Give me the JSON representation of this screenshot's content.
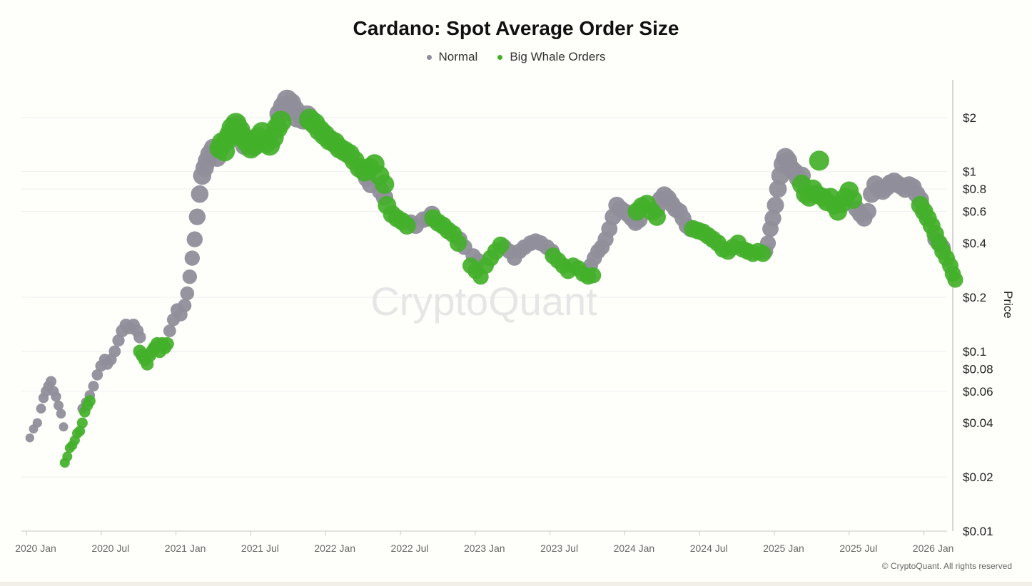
{
  "colors": {
    "normal": "#8f8e9a",
    "whale": "#43b02a",
    "grid": "#efefef",
    "axis": "#c8c8c8"
  },
  "chart_data": {
    "type": "scatter",
    "title": "Cardano: Spot Average Order Size",
    "ylabel": "Price",
    "xlabel": "",
    "y_scale": "log",
    "ylim": [
      0.01,
      3.3
    ],
    "y_ticks": [
      {
        "value": 2,
        "label": "$2"
      },
      {
        "value": 1,
        "label": "$1"
      },
      {
        "value": 0.8,
        "label": "$0.8"
      },
      {
        "value": 0.6,
        "label": "$0.6"
      },
      {
        "value": 0.4,
        "label": "$0.4"
      },
      {
        "value": 0.2,
        "label": "$0.2"
      },
      {
        "value": 0.1,
        "label": "$0.1"
      },
      {
        "value": 0.08,
        "label": "$0.08"
      },
      {
        "value": 0.06,
        "label": "$0.06"
      },
      {
        "value": 0.04,
        "label": "$0.04"
      },
      {
        "value": 0.02,
        "label": "$0.02"
      },
      {
        "value": 0.01,
        "label": "$0.01"
      }
    ],
    "x_ticks": [
      "2020 Jan",
      "2020 Jul",
      "2021 Jan",
      "2021 Jul",
      "2022 Jan",
      "2022 Jul",
      "2023 Jan",
      "2023 Jul",
      "2024 Jan",
      "2024 Jul",
      "2025 Jan",
      "2025 Jul",
      "2026 Jan"
    ],
    "xlim_months": [
      0,
      74.5
    ],
    "legend": [
      "Normal",
      "Big Whale Orders"
    ],
    "series": [
      {
        "name": "Normal",
        "points": [
          [
            0.1,
            0.033
          ],
          [
            0.4,
            0.037
          ],
          [
            0.7,
            0.04
          ],
          [
            1.0,
            0.048
          ],
          [
            1.2,
            0.055
          ],
          [
            1.4,
            0.06
          ],
          [
            1.6,
            0.064
          ],
          [
            1.8,
            0.068
          ],
          [
            2.0,
            0.06
          ],
          [
            2.2,
            0.056
          ],
          [
            2.4,
            0.05
          ],
          [
            2.6,
            0.045
          ],
          [
            2.8,
            0.038
          ],
          [
            4.3,
            0.048
          ],
          [
            4.6,
            0.052
          ],
          [
            4.9,
            0.057
          ],
          [
            5.2,
            0.064
          ],
          [
            5.5,
            0.074
          ],
          [
            5.8,
            0.083
          ],
          [
            6.1,
            0.09
          ],
          [
            6.3,
            0.085
          ],
          [
            6.6,
            0.09
          ],
          [
            6.9,
            0.1
          ],
          [
            7.2,
            0.115
          ],
          [
            7.5,
            0.13
          ],
          [
            7.8,
            0.14
          ],
          [
            8.1,
            0.135
          ],
          [
            8.4,
            0.14
          ],
          [
            8.7,
            0.13
          ],
          [
            8.9,
            0.12
          ],
          [
            11.3,
            0.13
          ],
          [
            11.6,
            0.15
          ],
          [
            11.9,
            0.17
          ],
          [
            12.2,
            0.16
          ],
          [
            12.5,
            0.18
          ],
          [
            12.7,
            0.21
          ],
          [
            12.9,
            0.26
          ],
          [
            13.1,
            0.33
          ],
          [
            13.3,
            0.42
          ],
          [
            13.5,
            0.56
          ],
          [
            13.7,
            0.75
          ],
          [
            13.9,
            0.95
          ],
          [
            14.1,
            1.05
          ],
          [
            14.3,
            1.15
          ],
          [
            14.5,
            1.25
          ],
          [
            14.8,
            1.35
          ],
          [
            15.1,
            1.2
          ],
          [
            16.4,
            1.7
          ],
          [
            16.7,
            1.8
          ],
          [
            17.0,
            1.6
          ],
          [
            17.3,
            1.4
          ],
          [
            20.1,
            2.1
          ],
          [
            20.4,
            2.3
          ],
          [
            20.7,
            2.5
          ],
          [
            21.0,
            2.4
          ],
          [
            21.3,
            2.2
          ],
          [
            21.5,
            2.0
          ],
          [
            22.0,
            1.95
          ],
          [
            22.3,
            2.05
          ],
          [
            27.1,
            0.92
          ],
          [
            27.4,
            0.85
          ],
          [
            28.2,
            0.78
          ],
          [
            28.5,
            0.72
          ],
          [
            30.6,
            0.52
          ],
          [
            31.0,
            0.5
          ],
          [
            31.6,
            0.54
          ],
          [
            32.0,
            0.55
          ],
          [
            32.3,
            0.58
          ],
          [
            34.5,
            0.42
          ],
          [
            34.9,
            0.38
          ],
          [
            35.6,
            0.34
          ],
          [
            36.0,
            0.32
          ],
          [
            38.1,
            0.38
          ],
          [
            38.5,
            0.36
          ],
          [
            38.9,
            0.33
          ],
          [
            39.3,
            0.36
          ],
          [
            39.7,
            0.38
          ],
          [
            40.2,
            0.4
          ],
          [
            40.6,
            0.41
          ],
          [
            41.0,
            0.4
          ],
          [
            41.5,
            0.38
          ],
          [
            41.9,
            0.36
          ],
          [
            44.7,
            0.28
          ],
          [
            45.0,
            0.3
          ],
          [
            45.3,
            0.33
          ],
          [
            45.6,
            0.36
          ],
          [
            45.9,
            0.38
          ],
          [
            46.2,
            0.42
          ],
          [
            46.5,
            0.48
          ],
          [
            46.8,
            0.56
          ],
          [
            47.1,
            0.65
          ],
          [
            47.4,
            0.62
          ],
          [
            47.7,
            0.6
          ],
          [
            48.0,
            0.58
          ],
          [
            48.3,
            0.55
          ],
          [
            48.6,
            0.52
          ],
          [
            48.9,
            0.54
          ],
          [
            50.3,
            0.62
          ],
          [
            50.6,
            0.7
          ],
          [
            50.9,
            0.74
          ],
          [
            51.2,
            0.71
          ],
          [
            51.5,
            0.66
          ],
          [
            51.8,
            0.62
          ],
          [
            52.1,
            0.6
          ],
          [
            52.4,
            0.55
          ],
          [
            52.7,
            0.5
          ],
          [
            53.0,
            0.48
          ],
          [
            59.0,
            0.36
          ],
          [
            59.2,
            0.4
          ],
          [
            59.4,
            0.48
          ],
          [
            59.6,
            0.55
          ],
          [
            59.8,
            0.65
          ],
          [
            60.0,
            0.8
          ],
          [
            60.2,
            0.95
          ],
          [
            60.4,
            1.1
          ],
          [
            60.6,
            1.2
          ],
          [
            60.8,
            1.15
          ],
          [
            61.0,
            1.05
          ],
          [
            61.3,
            1.0
          ],
          [
            61.6,
            0.92
          ],
          [
            61.9,
            0.95
          ],
          [
            66.3,
            0.62
          ],
          [
            66.6,
            0.58
          ],
          [
            66.9,
            0.55
          ],
          [
            67.2,
            0.6
          ],
          [
            67.5,
            0.75
          ],
          [
            67.8,
            0.85
          ],
          [
            68.1,
            0.8
          ],
          [
            68.4,
            0.78
          ],
          [
            68.7,
            0.82
          ],
          [
            69.0,
            0.86
          ],
          [
            69.3,
            0.88
          ],
          [
            69.6,
            0.85
          ],
          [
            69.9,
            0.83
          ],
          [
            70.2,
            0.8
          ],
          [
            70.5,
            0.84
          ],
          [
            70.8,
            0.82
          ],
          [
            71.1,
            0.75
          ],
          [
            71.4,
            0.7
          ],
          [
            72.6,
            0.42
          ],
          [
            72.9,
            0.4
          ],
          [
            73.2,
            0.38
          ]
        ]
      },
      {
        "name": "Big Whale Orders",
        "points": [
          [
            2.9,
            0.024
          ],
          [
            3.1,
            0.026
          ],
          [
            3.3,
            0.029
          ],
          [
            3.5,
            0.03
          ],
          [
            3.7,
            0.032
          ],
          [
            3.9,
            0.035
          ],
          [
            4.1,
            0.036
          ],
          [
            4.3,
            0.04
          ],
          [
            4.5,
            0.046
          ],
          [
            4.7,
            0.05
          ],
          [
            4.9,
            0.053
          ],
          [
            8.9,
            0.1
          ],
          [
            9.1,
            0.095
          ],
          [
            9.3,
            0.09
          ],
          [
            9.5,
            0.085
          ],
          [
            9.7,
            0.095
          ],
          [
            9.9,
            0.1
          ],
          [
            10.1,
            0.105
          ],
          [
            10.3,
            0.11
          ],
          [
            10.5,
            0.1
          ],
          [
            10.7,
            0.11
          ],
          [
            10.9,
            0.105
          ],
          [
            11.1,
            0.11
          ],
          [
            15.3,
            1.35
          ],
          [
            15.5,
            1.45
          ],
          [
            15.7,
            1.3
          ],
          [
            15.9,
            1.5
          ],
          [
            16.1,
            1.6
          ],
          [
            16.3,
            1.75
          ],
          [
            16.6,
            1.85
          ],
          [
            16.9,
            1.7
          ],
          [
            17.2,
            1.55
          ],
          [
            17.5,
            1.45
          ],
          [
            17.8,
            1.35
          ],
          [
            18.1,
            1.4
          ],
          [
            18.4,
            1.55
          ],
          [
            18.7,
            1.65
          ],
          [
            19.0,
            1.45
          ],
          [
            19.3,
            1.4
          ],
          [
            19.6,
            1.55
          ],
          [
            19.9,
            1.75
          ],
          [
            20.2,
            1.9
          ],
          [
            22.5,
            1.95
          ],
          [
            22.9,
            1.85
          ],
          [
            23.3,
            1.7
          ],
          [
            23.7,
            1.6
          ],
          [
            24.1,
            1.5
          ],
          [
            24.5,
            1.45
          ],
          [
            24.9,
            1.35
          ],
          [
            25.3,
            1.3
          ],
          [
            25.7,
            1.25
          ],
          [
            26.1,
            1.15
          ],
          [
            26.5,
            1.05
          ],
          [
            26.9,
            1.0
          ],
          [
            27.3,
            1.05
          ],
          [
            27.7,
            1.1
          ],
          [
            28.1,
            0.95
          ],
          [
            28.5,
            0.85
          ],
          [
            28.7,
            0.65
          ],
          [
            29.1,
            0.58
          ],
          [
            29.5,
            0.55
          ],
          [
            29.9,
            0.53
          ],
          [
            30.3,
            0.5
          ],
          [
            32.4,
            0.55
          ],
          [
            32.8,
            0.52
          ],
          [
            33.2,
            0.5
          ],
          [
            33.6,
            0.47
          ],
          [
            34.0,
            0.45
          ],
          [
            34.4,
            0.4
          ],
          [
            35.4,
            0.3
          ],
          [
            35.8,
            0.28
          ],
          [
            36.2,
            0.26
          ],
          [
            36.6,
            0.3
          ],
          [
            37.0,
            0.33
          ],
          [
            37.4,
            0.36
          ],
          [
            37.8,
            0.39
          ],
          [
            42.0,
            0.34
          ],
          [
            42.4,
            0.32
          ],
          [
            42.8,
            0.3
          ],
          [
            43.2,
            0.28
          ],
          [
            43.6,
            0.3
          ],
          [
            44.0,
            0.29
          ],
          [
            44.4,
            0.27
          ],
          [
            44.8,
            0.26
          ],
          [
            45.2,
            0.265
          ],
          [
            48.7,
            0.6
          ],
          [
            49.1,
            0.64
          ],
          [
            49.5,
            0.66
          ],
          [
            49.9,
            0.6
          ],
          [
            50.3,
            0.56
          ],
          [
            53.2,
            0.48
          ],
          [
            53.6,
            0.47
          ],
          [
            54.0,
            0.46
          ],
          [
            54.4,
            0.44
          ],
          [
            54.8,
            0.42
          ],
          [
            55.2,
            0.4
          ],
          [
            55.6,
            0.37
          ],
          [
            56.0,
            0.36
          ],
          [
            56.4,
            0.38
          ],
          [
            56.8,
            0.4
          ],
          [
            57.2,
            0.37
          ],
          [
            57.6,
            0.36
          ],
          [
            58.0,
            0.35
          ],
          [
            58.4,
            0.36
          ],
          [
            58.8,
            0.35
          ],
          [
            61.9,
            0.85
          ],
          [
            62.2,
            0.75
          ],
          [
            62.5,
            0.72
          ],
          [
            62.8,
            0.8
          ],
          [
            63.1,
            0.75
          ],
          [
            63.3,
            1.15
          ],
          [
            63.6,
            0.72
          ],
          [
            63.9,
            0.68
          ],
          [
            64.2,
            0.72
          ],
          [
            64.5,
            0.65
          ],
          [
            64.8,
            0.6
          ],
          [
            65.1,
            0.66
          ],
          [
            65.4,
            0.72
          ],
          [
            65.7,
            0.78
          ],
          [
            66.0,
            0.7
          ],
          [
            71.4,
            0.65
          ],
          [
            71.7,
            0.6
          ],
          [
            72.0,
            0.55
          ],
          [
            72.3,
            0.5
          ],
          [
            72.6,
            0.45
          ],
          [
            72.9,
            0.4
          ],
          [
            73.2,
            0.36
          ],
          [
            73.5,
            0.33
          ],
          [
            73.8,
            0.3
          ],
          [
            74.0,
            0.27
          ],
          [
            74.2,
            0.25
          ]
        ]
      }
    ]
  },
  "chart": {
    "title": "Cardano: Spot Average Order Size",
    "legend_normal": "Normal",
    "legend_whale": "Big Whale Orders",
    "y_axis_title": "Price",
    "watermark": "CryptoQuant",
    "copyright": "© CryptoQuant. All rights reserved"
  }
}
